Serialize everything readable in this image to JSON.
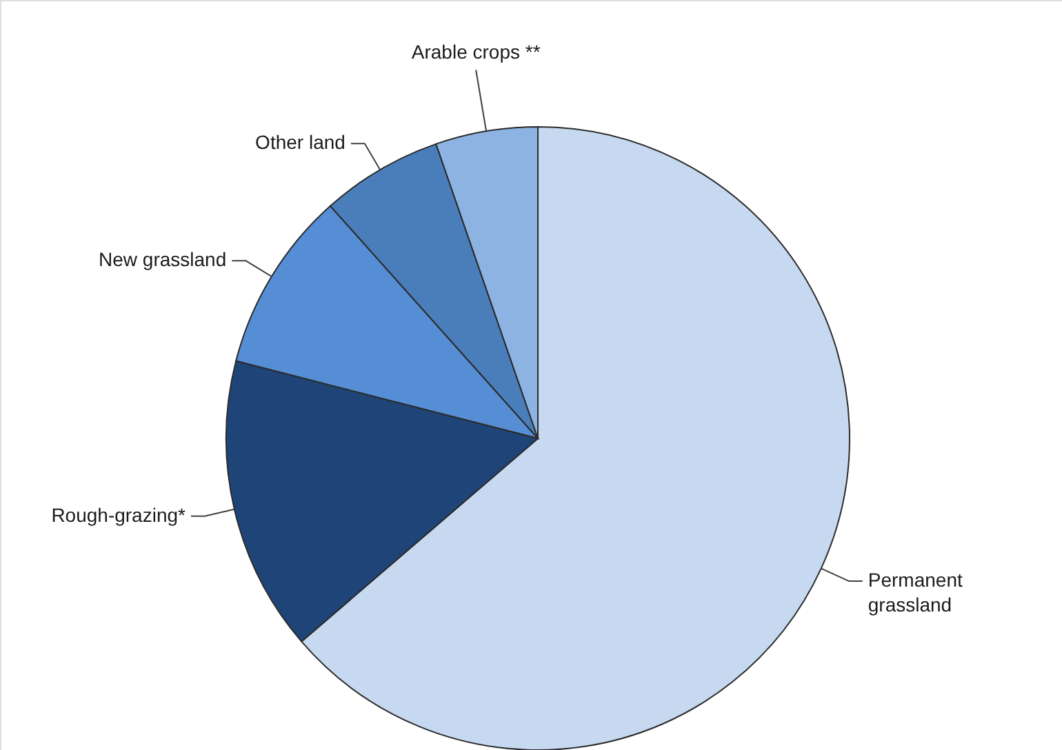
{
  "chart_data": {
    "type": "pie",
    "categories": [
      "Permanent grassland",
      "Rough-grazing*",
      "New grassland",
      "Other land",
      "Arable crops **"
    ],
    "values": [
      63.7,
      15.3,
      9.4,
      6.3,
      5.3
    ],
    "colors": [
      "#c6d9f0",
      "#1f4578",
      "#558ed5",
      "#4a7ebb",
      "#8db3e2"
    ]
  }
}
